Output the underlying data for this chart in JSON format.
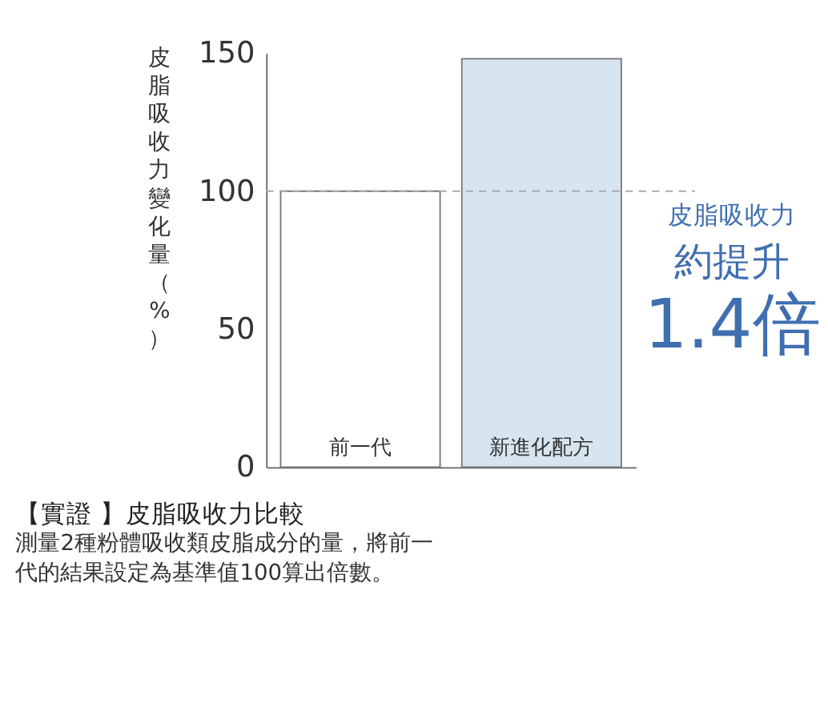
{
  "chart_data": {
    "type": "bar",
    "title": "【實證 】皮脂吸收力比較",
    "subtitle": "測量2種粉體吸收類皮脂成分的量，將前一代的結果設定為基準值100算出倍數。",
    "ylabel": "皮脂吸收力變化量（%）",
    "categories": [
      "前一代",
      "新進化配方"
    ],
    "values": [
      100,
      148
    ],
    "colors": [
      "#ffffff",
      "#d6e5f0"
    ],
    "ylim": [
      0,
      150
    ],
    "yticks": [
      0,
      50,
      100,
      150
    ],
    "grid": false,
    "ref_lines": [
      {
        "axis": "y",
        "value": 100,
        "label": null,
        "color": "#aaaaaa",
        "line_style": "dashed"
      }
    ],
    "annotations": [
      "皮脂吸收力",
      "約提升",
      "1.4倍"
    ]
  }
}
